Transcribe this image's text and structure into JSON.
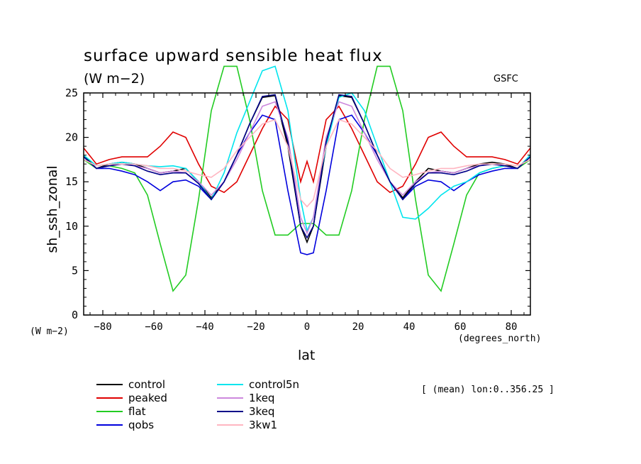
{
  "chart_data": {
    "type": "line",
    "title": "surface upward sensible heat flux",
    "units": "(W m−2)",
    "source": "GSFC",
    "ylabel": "sh_ssh_zonal",
    "ylabel_units": "(W m−2)",
    "xlabel": "lat",
    "xlabel_units": "(degrees_north)",
    "note": "[ (mean) lon:0..356.25 ]",
    "xlim": [
      -87.5,
      87.5
    ],
    "ylim": [
      0,
      25
    ],
    "xticks": [
      -80,
      -60,
      -40,
      -20,
      0,
      20,
      40,
      60,
      80
    ],
    "xtick_labels": [
      "−80",
      "−60",
      "−40",
      "−20",
      "0",
      "20",
      "40",
      "60",
      "80"
    ],
    "yticks": [
      0,
      5,
      10,
      15,
      20,
      25
    ],
    "ytick_labels": [
      "0",
      "5",
      "10",
      "15",
      "20",
      "25"
    ],
    "x": [
      -87.5,
      -82.5,
      -77.5,
      -72.5,
      -67.5,
      -62.5,
      -57.5,
      -52.5,
      -47.5,
      -42.5,
      -37.5,
      -32.5,
      -27.5,
      -22.5,
      -17.5,
      -12.5,
      -7.5,
      -2.5,
      0,
      2.5,
      7.5,
      12.5,
      17.5,
      22.5,
      27.5,
      32.5,
      37.5,
      42.5,
      47.5,
      52.5,
      57.5,
      62.5,
      67.5,
      72.5,
      77.5,
      82.5,
      87.5
    ],
    "series": [
      {
        "name": "control",
        "color": "#000000",
        "values": [
          18.0,
          16.5,
          17.0,
          17.2,
          17.0,
          16.5,
          16.0,
          16.2,
          16.5,
          15.0,
          13.2,
          15.0,
          18.0,
          21.5,
          24.5,
          24.7,
          19.0,
          10.0,
          8.2,
          10.0,
          19.0,
          24.7,
          24.5,
          21.5,
          18.0,
          15.0,
          13.2,
          15.0,
          16.5,
          16.2,
          16.0,
          16.5,
          17.0,
          17.2,
          17.0,
          16.5,
          18.0
        ]
      },
      {
        "name": "peaked",
        "color": "#e00000",
        "values": [
          18.8,
          17.0,
          17.5,
          17.8,
          17.8,
          17.8,
          19.0,
          20.6,
          20.0,
          17.0,
          14.5,
          13.8,
          15.0,
          18.0,
          21.0,
          23.5,
          22.0,
          15.0,
          17.3,
          15.0,
          22.0,
          23.5,
          21.0,
          18.0,
          15.0,
          13.8,
          14.5,
          17.0,
          20.0,
          20.6,
          19.0,
          17.8,
          17.8,
          17.8,
          17.5,
          17.0,
          18.8
        ]
      },
      {
        "name": "flat",
        "color": "#22cc22",
        "values": [
          17.5,
          16.5,
          16.8,
          16.5,
          16.0,
          13.5,
          8.0,
          2.7,
          4.5,
          13.0,
          23.0,
          28.0,
          28.0,
          22.0,
          14.0,
          9.0,
          9.0,
          10.3,
          10.3,
          10.3,
          9.0,
          9.0,
          14.0,
          22.0,
          28.0,
          28.0,
          23.0,
          13.0,
          4.5,
          2.7,
          8.0,
          13.5,
          16.0,
          16.5,
          16.8,
          16.5,
          17.5
        ]
      },
      {
        "name": "qobs",
        "color": "#0000dd",
        "values": [
          17.8,
          16.5,
          16.5,
          16.2,
          15.8,
          15.0,
          14.0,
          15.0,
          15.2,
          14.5,
          13.0,
          15.0,
          18.0,
          20.5,
          22.5,
          22.0,
          14.0,
          7.0,
          6.8,
          7.0,
          14.0,
          22.0,
          22.5,
          20.5,
          18.0,
          15.0,
          13.0,
          14.5,
          15.2,
          15.0,
          14.0,
          15.0,
          15.8,
          16.2,
          16.5,
          16.5,
          17.8
        ]
      },
      {
        "name": "control5n",
        "color": "#00e5ee",
        "values": [
          18.0,
          16.8,
          17.0,
          17.2,
          17.0,
          16.8,
          16.7,
          16.8,
          16.5,
          15.0,
          13.0,
          16.0,
          20.5,
          24.0,
          27.5,
          28.0,
          23.0,
          13.0,
          9.5,
          11.0,
          19.0,
          24.5,
          25.0,
          23.0,
          19.0,
          15.0,
          11.0,
          10.8,
          12.0,
          13.5,
          14.5,
          15.0,
          16.0,
          16.5,
          16.8,
          16.5,
          18.0
        ]
      },
      {
        "name": "1keq",
        "color": "#cc88dd",
        "values": [
          17.8,
          16.5,
          16.8,
          17.0,
          16.8,
          16.5,
          16.0,
          16.2,
          16.0,
          15.0,
          13.5,
          15.0,
          17.5,
          20.5,
          23.5,
          24.0,
          20.0,
          11.0,
          9.2,
          11.0,
          20.0,
          24.0,
          23.5,
          20.5,
          17.5,
          15.0,
          13.5,
          15.0,
          16.0,
          16.2,
          16.0,
          16.5,
          16.8,
          17.0,
          16.8,
          16.5,
          17.8
        ]
      },
      {
        "name": "3keq",
        "color": "#000088",
        "values": [
          17.8,
          16.5,
          16.8,
          17.0,
          16.8,
          16.2,
          15.8,
          16.0,
          16.0,
          14.8,
          13.0,
          15.0,
          18.0,
          21.5,
          24.6,
          24.8,
          19.5,
          10.0,
          8.7,
          10.0,
          19.5,
          24.8,
          24.6,
          21.5,
          18.0,
          15.0,
          13.0,
          14.8,
          16.0,
          16.0,
          15.8,
          16.2,
          16.8,
          17.0,
          16.8,
          16.5,
          17.8
        ]
      },
      {
        "name": "3kw1",
        "color": "#ffb6c1",
        "values": [
          17.5,
          16.8,
          17.0,
          17.0,
          17.0,
          16.8,
          16.5,
          16.5,
          16.2,
          15.8,
          15.5,
          16.5,
          18.5,
          20.0,
          21.5,
          22.0,
          19.0,
          13.0,
          12.2,
          13.0,
          19.0,
          22.0,
          21.5,
          20.0,
          18.5,
          16.5,
          15.5,
          15.8,
          16.2,
          16.5,
          16.5,
          16.8,
          17.0,
          17.0,
          17.0,
          16.8,
          17.5
        ]
      }
    ]
  }
}
